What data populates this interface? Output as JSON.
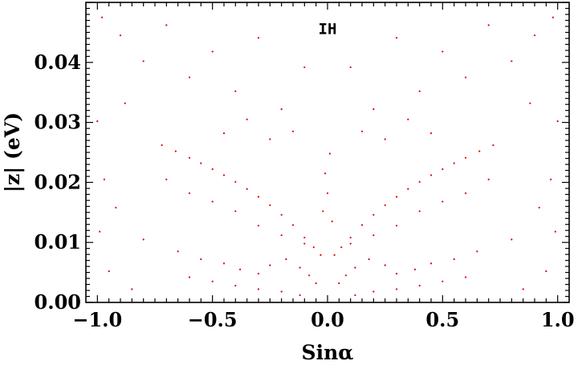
{
  "chart_data": {
    "type": "scatter",
    "title": "",
    "xlabel": "Sinα",
    "ylabel": "|z| (eV)",
    "xlim": [
      -1.05,
      1.05
    ],
    "ylim": [
      0.0,
      0.05
    ],
    "xticks": [
      {
        "value": -1.0,
        "label": "−1.0"
      },
      {
        "value": -0.5,
        "label": "−0.5"
      },
      {
        "value": 0.0,
        "label": "0.0"
      },
      {
        "value": 0.5,
        "label": "0.5"
      },
      {
        "value": 1.0,
        "label": "1.0"
      }
    ],
    "yticks": [
      {
        "value": 0.0,
        "label": "0.00"
      },
      {
        "value": 0.01,
        "label": "0.01"
      },
      {
        "value": 0.02,
        "label": "0.02"
      },
      {
        "value": 0.03,
        "label": "0.03"
      },
      {
        "value": 0.04,
        "label": "0.04"
      }
    ],
    "grid": false,
    "annotation": {
      "text": "IH",
      "x": 0.0,
      "y": 0.0455
    },
    "point_color": "#e00000",
    "series": [
      {
        "name": "",
        "points": [
          [
            -0.72,
            0.0262
          ],
          [
            -0.66,
            0.0252
          ],
          [
            -0.6,
            0.0241
          ],
          [
            -0.55,
            0.0232
          ],
          [
            -0.5,
            0.0222
          ],
          [
            -0.45,
            0.0212
          ],
          [
            -0.4,
            0.0201
          ],
          [
            -0.35,
            0.0189
          ],
          [
            -0.3,
            0.0176
          ],
          [
            -0.25,
            0.0162
          ],
          [
            -0.2,
            0.0146
          ],
          [
            -0.15,
            0.0129
          ],
          [
            -0.1,
            0.0108
          ],
          [
            -0.06,
            0.0092
          ],
          [
            -0.03,
            0.0079
          ],
          [
            0.72,
            0.0262
          ],
          [
            0.66,
            0.0252
          ],
          [
            0.6,
            0.0241
          ],
          [
            0.55,
            0.0232
          ],
          [
            0.5,
            0.0222
          ],
          [
            0.45,
            0.0212
          ],
          [
            0.4,
            0.0201
          ],
          [
            0.35,
            0.0189
          ],
          [
            0.3,
            0.0176
          ],
          [
            0.25,
            0.0162
          ],
          [
            0.2,
            0.0146
          ],
          [
            0.15,
            0.0129
          ],
          [
            0.1,
            0.0108
          ],
          [
            0.06,
            0.0092
          ],
          [
            0.03,
            0.0079
          ],
          [
            -0.7,
            0.0205
          ],
          [
            -0.6,
            0.0182
          ],
          [
            -0.5,
            0.0168
          ],
          [
            -0.4,
            0.0152
          ],
          [
            -0.3,
            0.0128
          ],
          [
            -0.2,
            0.0112
          ],
          [
            -0.1,
            0.0098
          ],
          [
            0.7,
            0.0205
          ],
          [
            0.6,
            0.0182
          ],
          [
            0.5,
            0.0168
          ],
          [
            0.4,
            0.0152
          ],
          [
            0.3,
            0.0128
          ],
          [
            0.2,
            0.0112
          ],
          [
            0.1,
            0.0098
          ],
          [
            -0.65,
            0.0085
          ],
          [
            -0.55,
            0.0072
          ],
          [
            -0.45,
            0.0065
          ],
          [
            -0.38,
            0.0055
          ],
          [
            -0.3,
            0.0048
          ],
          [
            -0.25,
            0.0062
          ],
          [
            -0.18,
            0.0072
          ],
          [
            -0.12,
            0.0058
          ],
          [
            -0.08,
            0.0045
          ],
          [
            -0.05,
            0.0032
          ],
          [
            0.65,
            0.0085
          ],
          [
            0.55,
            0.0072
          ],
          [
            0.45,
            0.0065
          ],
          [
            0.38,
            0.0055
          ],
          [
            0.3,
            0.0048
          ],
          [
            0.25,
            0.0062
          ],
          [
            0.18,
            0.0072
          ],
          [
            0.12,
            0.0058
          ],
          [
            0.08,
            0.0045
          ],
          [
            0.05,
            0.0032
          ],
          [
            -0.6,
            0.0042
          ],
          [
            -0.5,
            0.0035
          ],
          [
            -0.4,
            0.0028
          ],
          [
            -0.3,
            0.0022
          ],
          [
            -0.2,
            0.0018
          ],
          [
            -0.12,
            0.0012
          ],
          [
            0.6,
            0.0042
          ],
          [
            0.5,
            0.0035
          ],
          [
            0.4,
            0.0028
          ],
          [
            0.3,
            0.0022
          ],
          [
            0.2,
            0.0018
          ],
          [
            0.12,
            0.0012
          ],
          [
            -0.98,
            0.0475
          ],
          [
            -0.9,
            0.0445
          ],
          [
            -0.8,
            0.0402
          ],
          [
            -0.7,
            0.0462
          ],
          [
            -0.6,
            0.0375
          ],
          [
            -0.5,
            0.0418
          ],
          [
            -0.4,
            0.0352
          ],
          [
            -0.3,
            0.0441
          ],
          [
            -0.2,
            0.0322
          ],
          [
            -0.1,
            0.0392
          ],
          [
            -0.15,
            0.0285
          ],
          [
            0.98,
            0.0475
          ],
          [
            0.9,
            0.0445
          ],
          [
            0.8,
            0.0402
          ],
          [
            0.7,
            0.0462
          ],
          [
            0.6,
            0.0375
          ],
          [
            0.5,
            0.0418
          ],
          [
            0.4,
            0.0352
          ],
          [
            0.3,
            0.0441
          ],
          [
            0.2,
            0.0322
          ],
          [
            0.1,
            0.0392
          ],
          [
            0.15,
            0.0285
          ],
          [
            -1.0,
            0.0302
          ],
          [
            -0.99,
            0.0118
          ],
          [
            -0.97,
            0.0205
          ],
          [
            -0.95,
            0.0052
          ],
          [
            -0.92,
            0.0158
          ],
          [
            -0.88,
            0.0332
          ],
          [
            -0.85,
            0.0022
          ],
          [
            -0.8,
            0.0105
          ],
          [
            1.0,
            0.0302
          ],
          [
            0.99,
            0.0118
          ],
          [
            0.97,
            0.0205
          ],
          [
            0.95,
            0.0052
          ],
          [
            0.92,
            0.0158
          ],
          [
            0.88,
            0.0332
          ],
          [
            0.85,
            0.0022
          ],
          [
            0.8,
            0.0105
          ],
          [
            -0.35,
            0.0305
          ],
          [
            -0.25,
            0.0272
          ],
          [
            -0.45,
            0.0282
          ],
          [
            0.35,
            0.0305
          ],
          [
            0.25,
            0.0272
          ],
          [
            0.45,
            0.0282
          ],
          [
            -0.02,
            0.0152
          ],
          [
            0.02,
            0.0135
          ],
          [
            0.0,
            0.0182
          ],
          [
            -0.01,
            0.0215
          ],
          [
            0.01,
            0.0248
          ]
        ]
      }
    ]
  }
}
